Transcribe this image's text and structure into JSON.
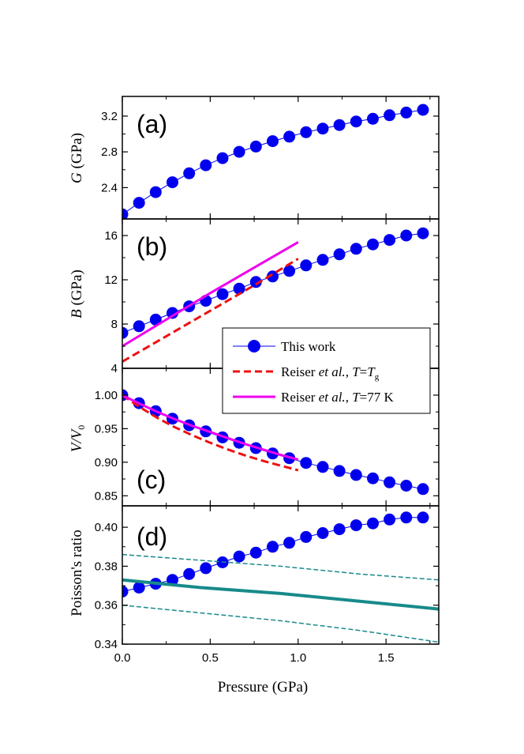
{
  "chart_data": [
    {
      "type": "line",
      "panel": "(a)",
      "ylabel_symbol": "G",
      "ylabel_unit": " (GPa)",
      "ylim": [
        2.05,
        3.42
      ],
      "yticks": [
        2.4,
        2.8,
        3.2
      ],
      "ytick_labels": [
        "2.4",
        "2.8",
        "3.2"
      ],
      "series": [
        {
          "name": "This work",
          "style": "dots",
          "color": "#0000ee",
          "x": [
            0.0,
            0.095,
            0.19,
            0.285,
            0.38,
            0.475,
            0.57,
            0.665,
            0.76,
            0.855,
            0.95,
            1.045,
            1.14,
            1.235,
            1.33,
            1.425,
            1.52,
            1.615,
            1.71
          ],
          "y": [
            2.1,
            2.23,
            2.35,
            2.46,
            2.56,
            2.65,
            2.73,
            2.8,
            2.86,
            2.92,
            2.97,
            3.02,
            3.06,
            3.1,
            3.14,
            3.17,
            3.21,
            3.24,
            3.27
          ]
        }
      ]
    },
    {
      "type": "line",
      "panel": "(b)",
      "ylabel_symbol": "B",
      "ylabel_unit": " (GPa)",
      "ylim": [
        4,
        17.5
      ],
      "yticks": [
        4,
        8,
        12,
        16
      ],
      "ytick_labels": [
        "4",
        "8",
        "12",
        "16"
      ],
      "series": [
        {
          "name": "This work",
          "style": "dots",
          "color": "#0000ee",
          "x": [
            0.0,
            0.095,
            0.19,
            0.285,
            0.38,
            0.475,
            0.57,
            0.665,
            0.76,
            0.855,
            0.95,
            1.045,
            1.14,
            1.235,
            1.33,
            1.425,
            1.52,
            1.615,
            1.71
          ],
          "y": [
            7.2,
            7.8,
            8.4,
            9.0,
            9.6,
            10.1,
            10.7,
            11.2,
            11.8,
            12.3,
            12.8,
            13.3,
            13.8,
            14.3,
            14.8,
            15.2,
            15.6,
            16.0,
            16.2
          ]
        },
        {
          "name": "Reiser Tg",
          "style": "dash",
          "color": "#ee1111",
          "x": [
            0.0,
            0.25,
            0.5,
            0.75,
            1.0
          ],
          "y": [
            4.6,
            6.9,
            9.2,
            11.5,
            13.9
          ]
        },
        {
          "name": "Reiser 77K",
          "style": "solid",
          "color": "#ee00ee",
          "x": [
            0.0,
            0.25,
            0.5,
            0.75,
            1.0
          ],
          "y": [
            6.0,
            8.4,
            10.8,
            13.1,
            15.4
          ]
        }
      ],
      "legend": {
        "entries": [
          {
            "text": "This work",
            "style": "dots",
            "color": "#0000ee"
          },
          {
            "text_pre": "Reiser ",
            "text_italic": "et al.",
            "text_mid": ", ",
            "text_var": "T",
            "text_eq": "=",
            "text_var2": "T",
            "text_sub": "g",
            "style": "dash",
            "color": "#ee1111"
          },
          {
            "text_pre": "Reiser ",
            "text_italic": "et al.",
            "text_mid": ", ",
            "text_var": "T",
            "text_tail": "=77 K",
            "style": "solid",
            "color": "#ee00ee"
          }
        ]
      }
    },
    {
      "type": "line",
      "panel": "(c)",
      "ylabel_symbol": "V/V",
      "ylabel_sub": "0",
      "ylim": [
        0.835,
        1.04
      ],
      "yticks": [
        0.85,
        0.9,
        0.95,
        1.0
      ],
      "ytick_labels": [
        "0.85",
        "0.90",
        "0.95",
        "1.00"
      ],
      "series": [
        {
          "name": "This work",
          "style": "dots",
          "color": "#0000ee",
          "x": [
            0.0,
            0.095,
            0.19,
            0.285,
            0.38,
            0.475,
            0.57,
            0.665,
            0.76,
            0.855,
            0.95,
            1.045,
            1.14,
            1.235,
            1.33,
            1.425,
            1.52,
            1.615,
            1.71
          ],
          "y": [
            1.0,
            0.988,
            0.976,
            0.965,
            0.955,
            0.946,
            0.937,
            0.929,
            0.921,
            0.913,
            0.906,
            0.899,
            0.893,
            0.887,
            0.881,
            0.876,
            0.87,
            0.865,
            0.86
          ]
        },
        {
          "name": "Reiser Tg",
          "style": "dash",
          "color": "#ee1111",
          "x": [
            0.0,
            0.1,
            0.2,
            0.3,
            0.4,
            0.5,
            0.6,
            0.7,
            0.8,
            0.9,
            1.0
          ],
          "y": [
            1.0,
            0.982,
            0.966,
            0.952,
            0.94,
            0.929,
            0.919,
            0.91,
            0.902,
            0.895,
            0.888
          ]
        },
        {
          "name": "Reiser 77K",
          "style": "solid",
          "color": "#ee00ee",
          "x": [
            0.0,
            0.1,
            0.2,
            0.3,
            0.4,
            0.5,
            0.6,
            0.7,
            0.8,
            0.9,
            1.0
          ],
          "y": [
            1.0,
            0.987,
            0.975,
            0.964,
            0.954,
            0.945,
            0.936,
            0.927,
            0.919,
            0.911,
            0.904
          ]
        }
      ]
    },
    {
      "type": "line",
      "panel": "(d)",
      "ylabel": "Poisson's ratio",
      "ylim": [
        0.34,
        0.411
      ],
      "yticks": [
        0.34,
        0.36,
        0.38,
        0.4
      ],
      "ytick_labels": [
        "0.34",
        "0.36",
        "0.38",
        "0.40"
      ],
      "xlabel": "Pressure (GPa)",
      "xlim": [
        0.0,
        1.8
      ],
      "xticks": [
        0.0,
        0.5,
        1.0,
        1.5
      ],
      "xtick_labels": [
        "0.0",
        "0.5",
        "1.0",
        "1.5"
      ],
      "series": [
        {
          "name": "This work",
          "style": "dots",
          "color": "#0000ee",
          "x": [
            0.0,
            0.095,
            0.19,
            0.285,
            0.38,
            0.475,
            0.57,
            0.665,
            0.76,
            0.855,
            0.95,
            1.045,
            1.14,
            1.235,
            1.33,
            1.425,
            1.52,
            1.615,
            1.71
          ],
          "y": [
            0.367,
            0.369,
            0.371,
            0.373,
            0.376,
            0.379,
            0.382,
            0.385,
            0.387,
            0.39,
            0.392,
            0.395,
            0.397,
            0.399,
            0.401,
            0.402,
            0.404,
            0.405,
            0.405
          ]
        },
        {
          "name": "Band upper",
          "style": "thin-dash",
          "color": "#188a8a",
          "x": [
            0.0,
            0.45,
            0.9,
            1.35,
            1.8
          ],
          "y": [
            0.386,
            0.383,
            0.38,
            0.376,
            0.373
          ]
        },
        {
          "name": "Central",
          "style": "thick",
          "color": "#188a8a",
          "x": [
            0.0,
            0.45,
            0.9,
            1.35,
            1.8
          ],
          "y": [
            0.373,
            0.369,
            0.366,
            0.362,
            0.358
          ]
        },
        {
          "name": "Band lower",
          "style": "thin-dash",
          "color": "#188a8a",
          "x": [
            0.0,
            0.45,
            0.9,
            1.35,
            1.8
          ],
          "y": [
            0.36,
            0.356,
            0.352,
            0.347,
            0.341
          ]
        }
      ]
    }
  ]
}
